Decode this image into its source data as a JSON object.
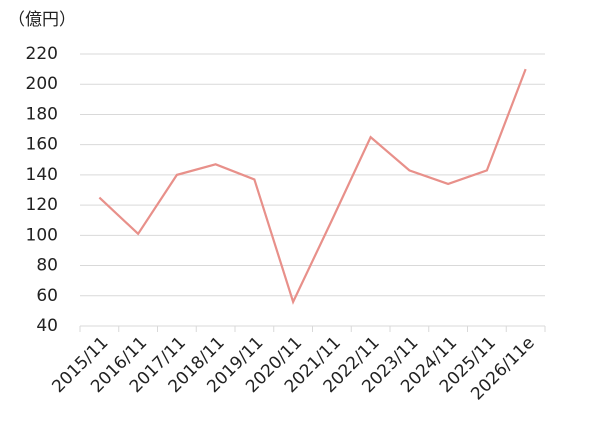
{
  "chart_data": {
    "type": "line",
    "y_unit": "（億円）",
    "categories": [
      "2015/11",
      "2016/11",
      "2017/11",
      "2018/11",
      "2019/11",
      "2020/11",
      "2021/11",
      "2022/11",
      "2023/11",
      "2024/11",
      "2025/11",
      "2026/11e"
    ],
    "series": [
      {
        "color": "#e8908a",
        "values": [
          125,
          101,
          140,
          147,
          137,
          56,
          110,
          165,
          143,
          134,
          143,
          210
        ]
      }
    ],
    "ylim": [
      40,
      220
    ],
    "yticks": [
      40,
      60,
      80,
      100,
      120,
      140,
      160,
      180,
      200,
      220
    ],
    "grid": true
  }
}
